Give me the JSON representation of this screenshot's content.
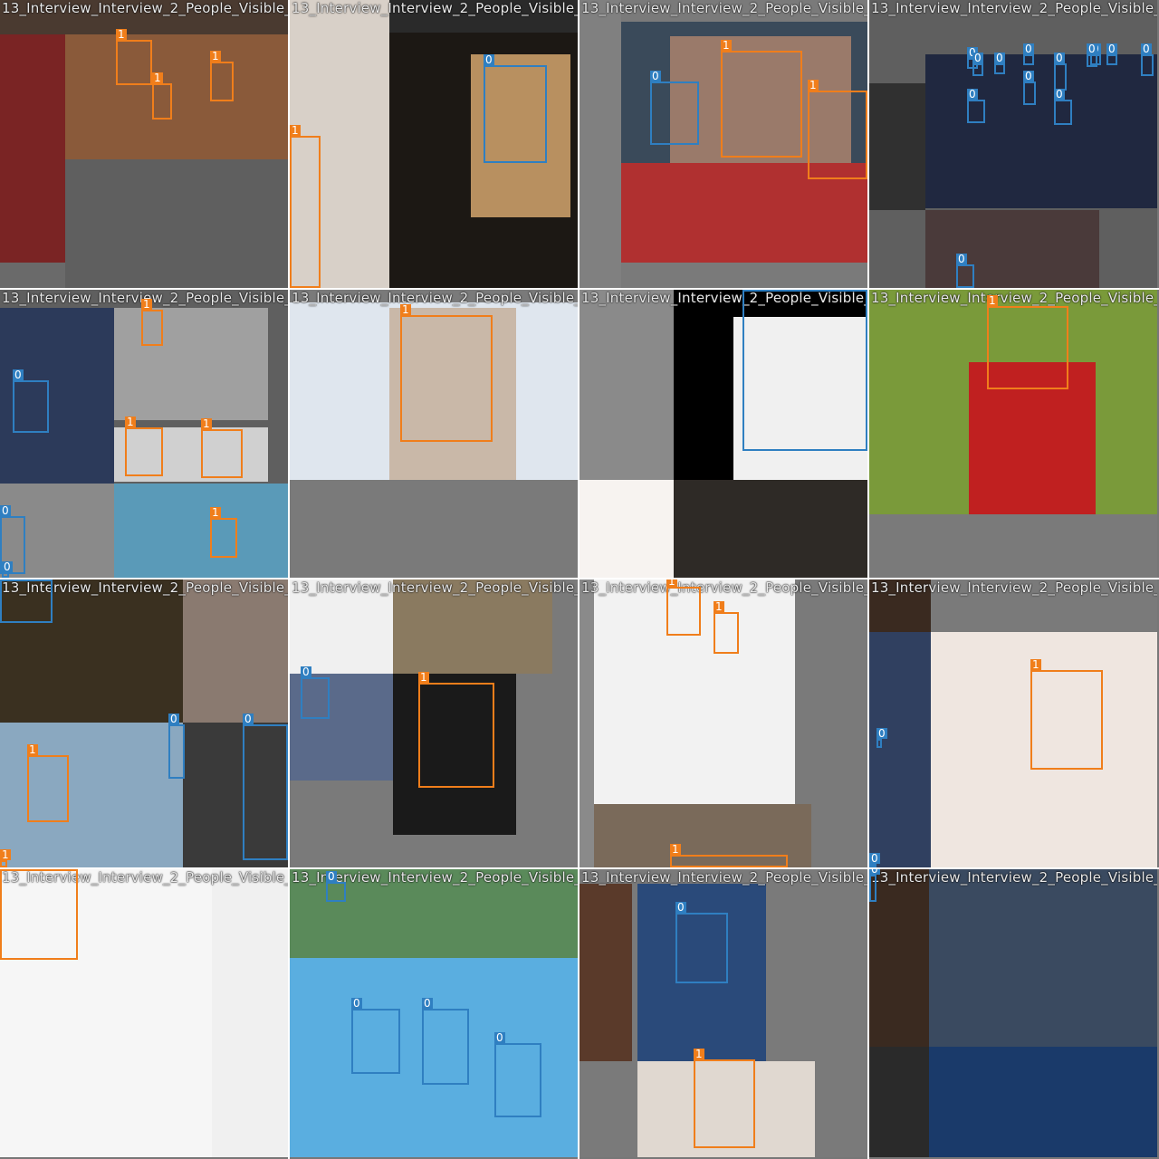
{
  "tile_title": "13_Interview_Interview_2_People_Visible_",
  "class_colors": {
    "0": "#2f7fc1",
    "1": "#f07e1b"
  },
  "tiles": [
    {
      "boxes": [
        {
          "cls": "1",
          "label": "1"
        },
        {
          "cls": "1",
          "label": "1"
        },
        {
          "cls": "1",
          "label": "1"
        }
      ]
    },
    {
      "boxes": [
        {
          "cls": "0",
          "label": "0"
        },
        {
          "cls": "1",
          "label": "1"
        }
      ]
    },
    {
      "boxes": [
        {
          "cls": "0",
          "label": "0"
        },
        {
          "cls": "1",
          "label": "1"
        },
        {
          "cls": "1",
          "label": "1"
        }
      ]
    },
    {
      "boxes": [
        {
          "cls": "0",
          "label": "0"
        },
        {
          "cls": "0",
          "label": "0"
        },
        {
          "cls": "0",
          "label": "0"
        },
        {
          "cls": "0",
          "label": "0"
        },
        {
          "cls": "0",
          "label": "0"
        },
        {
          "cls": "0",
          "label": "0"
        },
        {
          "cls": "0",
          "label": "0"
        },
        {
          "cls": "0",
          "label": "0"
        },
        {
          "cls": "0",
          "label": "0"
        },
        {
          "cls": "0",
          "label": "0"
        },
        {
          "cls": "0",
          "label": "0"
        },
        {
          "cls": "0",
          "label": "0"
        },
        {
          "cls": "0",
          "label": "0"
        }
      ]
    },
    {
      "boxes": [
        {
          "cls": "1",
          "label": "1"
        },
        {
          "cls": "0",
          "label": "0"
        },
        {
          "cls": "1",
          "label": "1"
        },
        {
          "cls": "1",
          "label": "1"
        },
        {
          "cls": "1",
          "label": "1"
        },
        {
          "cls": "0",
          "label": "0"
        },
        {
          "cls": "0",
          "label": "0"
        }
      ]
    },
    {
      "boxes": [
        {
          "cls": "1",
          "label": "1"
        }
      ]
    },
    {
      "boxes": [
        {
          "cls": "0",
          "label": "0"
        }
      ]
    },
    {
      "boxes": [
        {
          "cls": "1",
          "label": "1"
        }
      ]
    },
    {
      "boxes": [
        {
          "cls": "0",
          "label": "0"
        },
        {
          "cls": "1",
          "label": "1"
        },
        {
          "cls": "0",
          "label": "0"
        },
        {
          "cls": "0",
          "label": "0"
        },
        {
          "cls": "1",
          "label": "1"
        }
      ]
    },
    {
      "boxes": [
        {
          "cls": "0",
          "label": "0"
        },
        {
          "cls": "1",
          "label": "1"
        }
      ]
    },
    {
      "boxes": [
        {
          "cls": "1",
          "label": "1"
        },
        {
          "cls": "1",
          "label": "1"
        },
        {
          "cls": "1",
          "label": "1"
        }
      ]
    },
    {
      "boxes": [
        {
          "cls": "1",
          "label": "1"
        },
        {
          "cls": "0",
          "label": "0"
        },
        {
          "cls": "0",
          "label": "0"
        }
      ]
    },
    {
      "boxes": [
        {
          "cls": "1",
          "label": "1"
        }
      ]
    },
    {
      "boxes": [
        {
          "cls": "0",
          "label": "0"
        },
        {
          "cls": "0",
          "label": "0"
        },
        {
          "cls": "0",
          "label": "0"
        },
        {
          "cls": "0",
          "label": "0"
        }
      ]
    },
    {
      "boxes": [
        {
          "cls": "0",
          "label": "0"
        },
        {
          "cls": "1",
          "label": "1"
        }
      ]
    },
    {
      "boxes": [
        {
          "cls": "0",
          "label": "0"
        }
      ]
    }
  ]
}
